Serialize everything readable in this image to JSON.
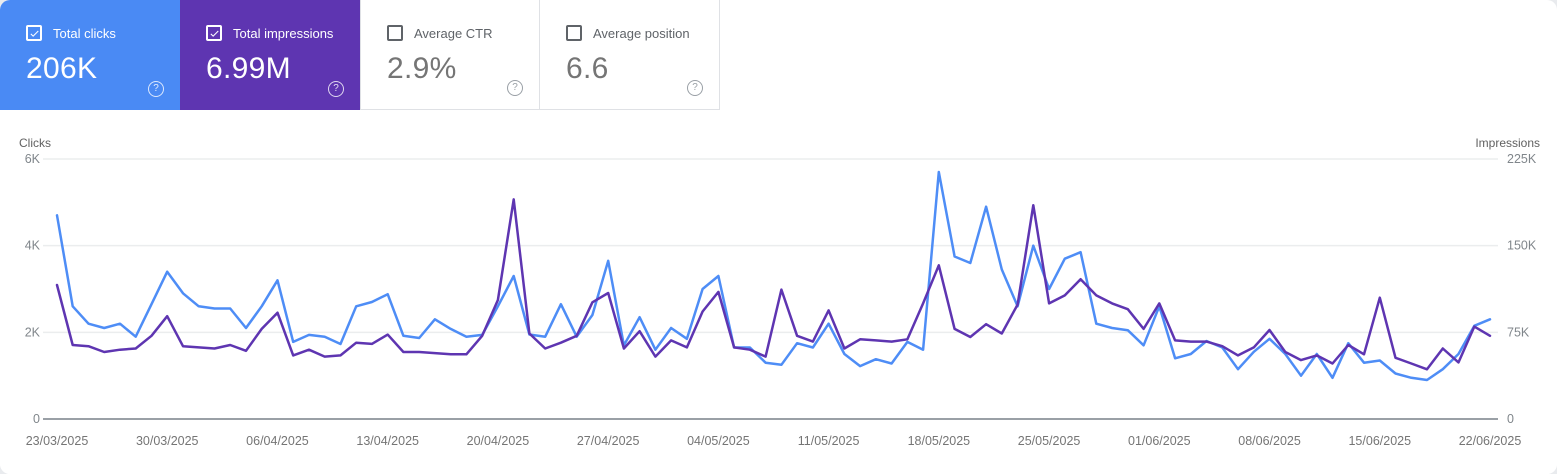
{
  "cards": [
    {
      "label": "Total clicks",
      "value": "206K",
      "checked": true,
      "selected": true,
      "color": "#4a8af4"
    },
    {
      "label": "Total impressions",
      "value": "6.99M",
      "checked": true,
      "selected": true,
      "color": "#5e35b1"
    },
    {
      "label": "Average CTR",
      "value": "2.9%",
      "checked": false,
      "selected": false,
      "color": "#ffffff"
    },
    {
      "label": "Average position",
      "value": "6.6",
      "checked": false,
      "selected": false,
      "color": "#ffffff"
    }
  ],
  "icons": {
    "help": "?",
    "checkbox_checked": "checkmark"
  },
  "colors": {
    "clicks_line": "#4e8df6",
    "impressions_line": "#5e35b1",
    "grid": "#ebedee",
    "axis_line": "#9aa0a6",
    "tick_text": "#80868b",
    "date_text": "#757575"
  },
  "chart_data": {
    "type": "line",
    "title": "",
    "grid": "horizontal",
    "x_tick_labels": [
      "23/03/2025",
      "30/03/2025",
      "06/04/2025",
      "13/04/2025",
      "20/04/2025",
      "27/04/2025",
      "04/05/2025",
      "11/05/2025",
      "18/05/2025",
      "25/05/2025",
      "01/06/2025",
      "08/06/2025",
      "15/06/2025",
      "22/06/2025"
    ],
    "left_axis": {
      "title": "Clicks",
      "max": 6000,
      "ticks": [
        {
          "label": "0",
          "value": 0
        },
        {
          "label": "2K",
          "value": 2000
        },
        {
          "label": "4K",
          "value": 4000
        },
        {
          "label": "6K",
          "value": 6000
        }
      ]
    },
    "right_axis": {
      "title": "Impressions",
      "max": 225000,
      "ticks": [
        {
          "label": "0",
          "value": 0
        },
        {
          "label": "75K",
          "value": 75000
        },
        {
          "label": "150K",
          "value": 150000
        },
        {
          "label": "225K",
          "value": 225000
        }
      ]
    },
    "series": [
      {
        "name": "Clicks",
        "axis": "left",
        "color": "#4e8df6",
        "values": [
          4700,
          2600,
          2200,
          2100,
          2200,
          1900,
          2650,
          3400,
          2900,
          2600,
          2550,
          2550,
          2100,
          2600,
          3200,
          1780,
          1940,
          1900,
          1730,
          2600,
          2700,
          2880,
          1920,
          1870,
          2300,
          2080,
          1900,
          1940,
          2600,
          3300,
          1950,
          1900,
          2650,
          1900,
          2400,
          3650,
          1700,
          2350,
          1600,
          2100,
          1850,
          3000,
          3300,
          1650,
          1650,
          1300,
          1250,
          1750,
          1650,
          2200,
          1500,
          1220,
          1380,
          1280,
          1780,
          1600,
          5700,
          3750,
          3600,
          4900,
          3450,
          2600,
          4000,
          3000,
          3700,
          3850,
          2200,
          2100,
          2050,
          1700,
          2600,
          1400,
          1500,
          1800,
          1650,
          1150,
          1550,
          1850,
          1500,
          1000,
          1500,
          950,
          1750,
          1300,
          1350,
          1050,
          950,
          900,
          1150,
          1500,
          2150,
          2300
        ]
      },
      {
        "name": "Impressions",
        "axis": "right",
        "color": "#5e35b1",
        "values": [
          116000,
          64000,
          63000,
          58000,
          60000,
          61000,
          72000,
          89000,
          63000,
          62000,
          61000,
          64000,
          59000,
          78000,
          92000,
          55000,
          60000,
          54000,
          55000,
          66000,
          65000,
          73000,
          58000,
          58000,
          57000,
          56000,
          56000,
          72000,
          103000,
          190000,
          74000,
          61000,
          66000,
          72000,
          101000,
          109000,
          61000,
          76000,
          54000,
          68000,
          62000,
          93000,
          110000,
          62000,
          60000,
          54000,
          112000,
          72000,
          67000,
          94000,
          61000,
          69000,
          68000,
          67000,
          69000,
          100000,
          133000,
          78000,
          71000,
          82000,
          74000,
          99000,
          185000,
          100000,
          107000,
          121000,
          107000,
          100000,
          95000,
          78000,
          100000,
          68000,
          67000,
          67000,
          63000,
          55000,
          62000,
          77000,
          58000,
          51000,
          55000,
          48000,
          64000,
          56000,
          105000,
          53000,
          48000,
          43000,
          61000,
          49000,
          80000,
          72000
        ]
      }
    ]
  }
}
